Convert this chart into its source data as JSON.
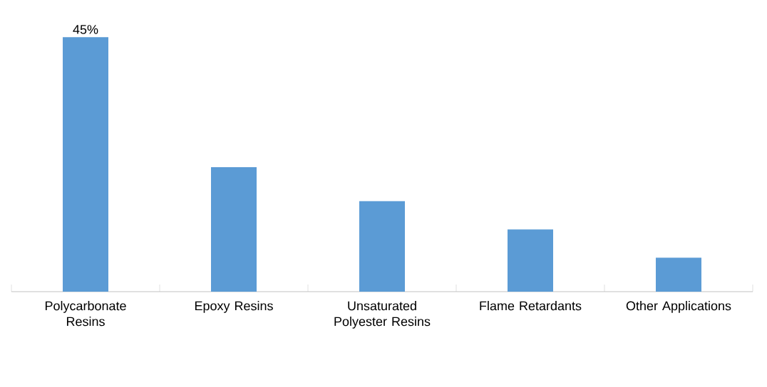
{
  "chart_data": {
    "type": "bar",
    "categories": [
      "Polycarbonate Resins",
      "Epoxy Resins",
      "Unsaturated Polyester Resins",
      "Flame Retardants",
      "Other Applications"
    ],
    "values": [
      45,
      22,
      16,
      11,
      6
    ],
    "value_labels": [
      "45%",
      null,
      null,
      null,
      null
    ],
    "color": "#5b9bd5",
    "tick_labels": "x"
  }
}
